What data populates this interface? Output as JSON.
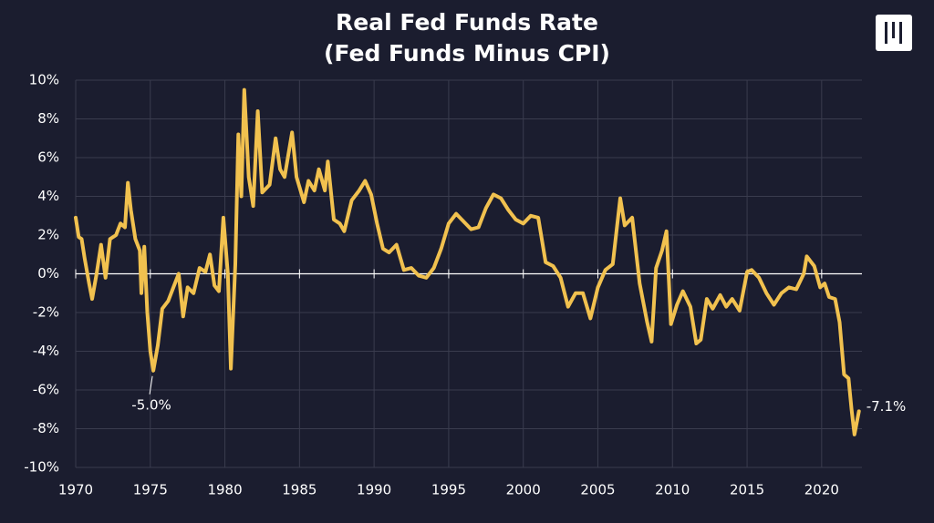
{
  "chart_data": {
    "type": "line",
    "title": [
      "Real Fed Funds Rate",
      "(Fed Funds Minus CPI)"
    ],
    "x": [
      1970.0,
      1970.2,
      1970.4,
      1970.6,
      1970.9,
      1971.1,
      1971.4,
      1971.7,
      1972.0,
      1972.3,
      1972.7,
      1973.0,
      1973.3,
      1973.5,
      1973.7,
      1974.0,
      1974.3,
      1974.4,
      1974.6,
      1974.8,
      1975.0,
      1975.2,
      1975.5,
      1975.8,
      1976.2,
      1976.5,
      1976.9,
      1977.2,
      1977.5,
      1977.9,
      1978.3,
      1978.7,
      1979.0,
      1979.3,
      1979.6,
      1979.9,
      1980.2,
      1980.4,
      1980.7,
      1980.9,
      1981.1,
      1981.3,
      1981.6,
      1981.9,
      1982.2,
      1982.5,
      1983.0,
      1983.4,
      1983.7,
      1984.0,
      1984.5,
      1984.8,
      1985.3,
      1985.6,
      1986.0,
      1986.3,
      1986.7,
      1986.9,
      1987.3,
      1987.7,
      1988.0,
      1988.5,
      1989.0,
      1989.4,
      1989.8,
      1990.2,
      1990.6,
      1991.0,
      1991.5,
      1992.0,
      1992.5,
      1993.0,
      1993.5,
      1994.0,
      1994.5,
      1995.0,
      1995.5,
      1996.0,
      1996.5,
      1997.0,
      1997.5,
      1998.0,
      1998.5,
      1999.0,
      1999.5,
      2000.0,
      2000.5,
      2001.0,
      2001.5,
      2002.0,
      2002.5,
      2003.0,
      2003.5,
      2004.0,
      2004.5,
      2005.0,
      2005.5,
      2006.0,
      2006.5,
      2006.8,
      2007.3,
      2007.8,
      2008.3,
      2008.6,
      2008.9,
      2009.3,
      2009.6,
      2009.9,
      2010.3,
      2010.7,
      2011.2,
      2011.6,
      2011.9,
      2012.3,
      2012.7,
      2013.2,
      2013.6,
      2014.0,
      2014.5,
      2015.0,
      2015.3,
      2015.8,
      2016.3,
      2016.8,
      2017.3,
      2017.8,
      2018.3,
      2018.8,
      2019.0,
      2019.5,
      2019.9,
      2020.2,
      2020.5,
      2020.9,
      2021.2,
      2021.5,
      2021.8,
      2022.0,
      2022.2,
      2022.5
    ],
    "series": [
      {
        "color": "#f1c14f",
        "values": [
          2.9,
          1.9,
          1.8,
          0.8,
          -0.5,
          -1.3,
          0.0,
          1.5,
          -0.2,
          1.8,
          2.0,
          2.6,
          2.4,
          4.7,
          3.3,
          1.8,
          1.2,
          -1.0,
          1.4,
          -2.0,
          -4.0,
          -5.0,
          -3.7,
          -1.8,
          -1.4,
          -0.8,
          0.0,
          -2.2,
          -0.7,
          -1.0,
          0.3,
          0.1,
          1.0,
          -0.6,
          -0.9,
          2.9,
          0.0,
          -4.9,
          0.5,
          7.2,
          4.0,
          9.5,
          5.0,
          3.5,
          8.4,
          4.2,
          4.6,
          7.0,
          5.4,
          5.0,
          7.3,
          5.0,
          3.7,
          4.8,
          4.3,
          5.4,
          4.3,
          5.8,
          2.8,
          2.6,
          2.2,
          3.8,
          4.3,
          4.8,
          4.1,
          2.6,
          1.3,
          1.1,
          1.5,
          0.2,
          0.3,
          -0.1,
          -0.2,
          0.3,
          1.3,
          2.6,
          3.1,
          2.7,
          2.3,
          2.4,
          3.4,
          4.1,
          3.9,
          3.3,
          2.8,
          2.6,
          3.0,
          2.9,
          0.6,
          0.4,
          -0.2,
          -1.7,
          -1.0,
          -1.0,
          -2.3,
          -0.7,
          0.2,
          0.5,
          3.9,
          2.5,
          2.9,
          -0.5,
          -2.5,
          -3.5,
          0.3,
          1.2,
          2.2,
          -2.6,
          -1.6,
          -0.9,
          -1.7,
          -3.6,
          -3.4,
          -1.3,
          -1.8,
          -1.1,
          -1.7,
          -1.3,
          -1.9,
          0.1,
          0.2,
          -0.2,
          -1.0,
          -1.6,
          -1.0,
          -0.7,
          -0.8,
          0.0,
          0.9,
          0.4,
          -0.7,
          -0.5,
          -1.2,
          -1.3,
          -2.5,
          -5.2,
          -5.4,
          -7.0,
          -8.3,
          -7.1
        ]
      }
    ],
    "xlim": [
      1970,
      2022.7
    ],
    "xticks": [
      1970,
      1975,
      1980,
      1985,
      1990,
      1995,
      2000,
      2005,
      2010,
      2015,
      2020
    ],
    "ylim": [
      -10,
      10
    ],
    "yticks": [
      {
        "value": -10,
        "label": "-10%"
      },
      {
        "value": -8,
        "label": "-8%"
      },
      {
        "value": -6,
        "label": "-6%"
      },
      {
        "value": -4,
        "label": "-4%"
      },
      {
        "value": -2,
        "label": "-2%"
      },
      {
        "value": 0,
        "label": "0%"
      },
      {
        "value": 2,
        "label": "2%"
      },
      {
        "value": 4,
        "label": "4%"
      },
      {
        "value": 6,
        "label": "6%"
      },
      {
        "value": 8,
        "label": "8%"
      },
      {
        "value": 10,
        "label": "10%"
      }
    ],
    "grid": true,
    "annotations": [
      {
        "text": "-5.0%",
        "x": 1975.2,
        "y": -5.0
      },
      {
        "text": "-7.1%",
        "x": 2022.5,
        "y": -7.1
      }
    ]
  }
}
